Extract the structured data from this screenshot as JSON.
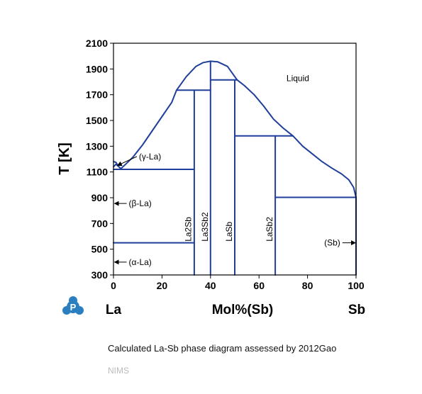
{
  "chart_data": {
    "type": "line",
    "title": "",
    "xlabel": "Mol%(Sb)",
    "ylabel": "T [K]",
    "xlim": [
      0,
      100
    ],
    "ylim": [
      300,
      2100
    ],
    "x_ticks": [
      0,
      20,
      40,
      60,
      80,
      100
    ],
    "y_ticks": [
      300,
      500,
      700,
      900,
      1100,
      1300,
      1500,
      1700,
      1900,
      2100
    ],
    "left_element": "La",
    "right_element": "Sb",
    "line_color": "#1f3f9a",
    "grid": false,
    "series": [
      {
        "values": [
          [
            0,
            1180
          ],
          [
            1,
            1175
          ],
          [
            2,
            1145
          ],
          [
            3,
            1125
          ]
        ]
      },
      {
        "values": [
          [
            3,
            1125
          ],
          [
            5,
            1160
          ],
          [
            8,
            1215
          ],
          [
            12,
            1310
          ],
          [
            16,
            1420
          ],
          [
            20,
            1530
          ],
          [
            24,
            1640
          ],
          [
            26,
            1735
          ]
        ]
      },
      {
        "values": [
          [
            26,
            1735
          ],
          [
            30,
            1840
          ],
          [
            34,
            1920
          ],
          [
            37,
            1950
          ],
          [
            40,
            1960
          ],
          [
            43,
            1955
          ],
          [
            47,
            1920
          ],
          [
            51,
            1815
          ]
        ]
      },
      {
        "values": [
          [
            51,
            1815
          ],
          [
            54,
            1770
          ],
          [
            58,
            1700
          ],
          [
            62,
            1610
          ],
          [
            66,
            1510
          ],
          [
            70,
            1440
          ],
          [
            74,
            1380
          ]
        ]
      },
      {
        "values": [
          [
            74,
            1380
          ],
          [
            78,
            1300
          ],
          [
            82,
            1240
          ],
          [
            86,
            1180
          ],
          [
            90,
            1130
          ],
          [
            94,
            1085
          ],
          [
            97,
            1040
          ],
          [
            99,
            980
          ],
          [
            100,
            903
          ]
        ]
      },
      {
        "values": [
          [
            0,
            1140
          ],
          [
            1,
            1160
          ],
          [
            2,
            1145
          ]
        ]
      },
      {
        "values": [
          [
            0,
            1120
          ],
          [
            33.3,
            1120
          ]
        ]
      },
      {
        "values": [
          [
            0,
            550
          ],
          [
            33.3,
            550
          ]
        ]
      },
      {
        "values": [
          [
            26,
            1735
          ],
          [
            40,
            1735
          ]
        ]
      },
      {
        "values": [
          [
            40,
            1815
          ],
          [
            51,
            1815
          ]
        ]
      },
      {
        "values": [
          [
            50,
            1380
          ],
          [
            74,
            1380
          ]
        ]
      },
      {
        "values": [
          [
            66.7,
            903
          ],
          [
            100,
            903
          ]
        ]
      },
      {
        "values": [
          [
            33.3,
            300
          ],
          [
            33.3,
            1735
          ]
        ]
      },
      {
        "values": [
          [
            40,
            300
          ],
          [
            40,
            1960
          ]
        ]
      },
      {
        "values": [
          [
            50,
            300
          ],
          [
            50,
            1815
          ]
        ]
      },
      {
        "values": [
          [
            66.7,
            300
          ],
          [
            66.7,
            1380
          ]
        ]
      },
      {
        "values": [
          [
            100,
            300
          ],
          [
            100,
            903
          ]
        ]
      }
    ],
    "phase_labels": [
      {
        "text": "Liquid",
        "x": 76,
        "y": 1805
      },
      {
        "text": "La2Sb",
        "x": 32,
        "y": 560,
        "rotate": true
      },
      {
        "text": "La3Sb2",
        "x": 38.9,
        "y": 560,
        "rotate": true
      },
      {
        "text": "LaSb",
        "x": 48.8,
        "y": 560,
        "rotate": true
      },
      {
        "text": "LaSb2",
        "x": 65.5,
        "y": 560,
        "rotate": true
      }
    ],
    "arrow_annotations": [
      {
        "text": "(γ-La)",
        "label_x": 10.5,
        "label_y": 1220,
        "target_x": 1.6,
        "target_y": 1150,
        "side": "right"
      },
      {
        "text": "(β-La)",
        "label_x": 6.3,
        "label_y": 855,
        "target_x": 0.4,
        "target_y": 855,
        "side": "right"
      },
      {
        "text": "(α-La)",
        "label_x": 6.3,
        "label_y": 400,
        "target_x": 0.4,
        "target_y": 400,
        "side": "right"
      },
      {
        "text": "(Sb)",
        "label_x": 93.5,
        "label_y": 550,
        "target_x": 99.8,
        "target_y": 550,
        "side": "left"
      }
    ]
  },
  "caption": "Calculated La-Sb phase diagram assessed by 2012Gao",
  "footer": "NIMS",
  "logo": {
    "icon": "p-logo-icon",
    "color": "#2a7fc1"
  }
}
